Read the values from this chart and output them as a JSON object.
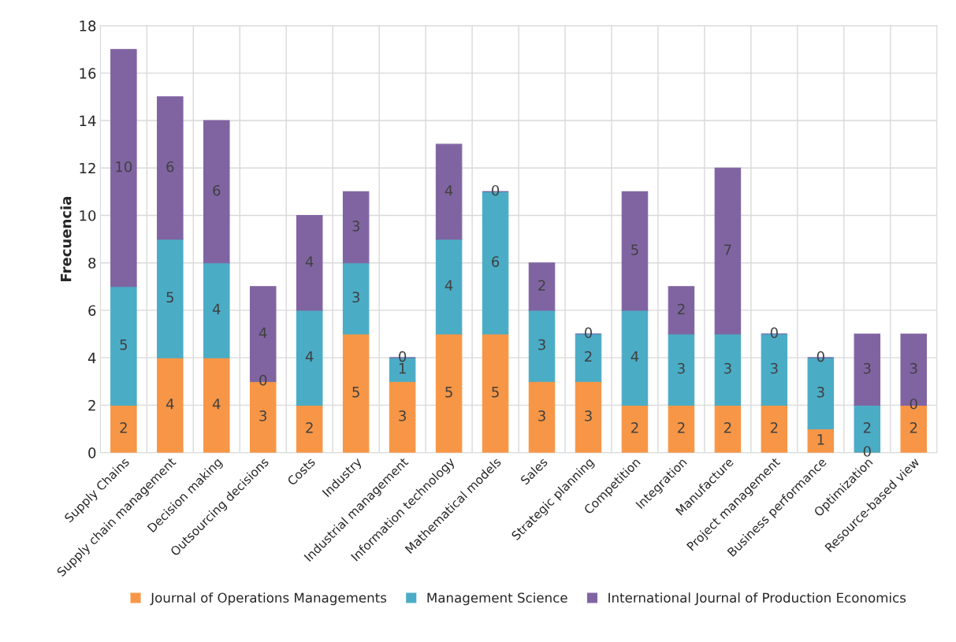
{
  "chart_data": {
    "type": "bar",
    "stacked": true,
    "ylabel": "Frecuencia",
    "categories": [
      "Supply Chains",
      "Supply chain management",
      "Decision making",
      "Outsourcing decisions",
      "Costs",
      "Industry",
      "Industrial management",
      "Information technology",
      "Mathematical models",
      "Sales",
      "Strategic planning",
      "Competition",
      "Integration",
      "Manufacture",
      "Project management",
      "Business performance",
      "Optimization",
      "Resource-based view"
    ],
    "series": [
      {
        "name": "Journal of Operations Managements",
        "color": "#f79646",
        "values": [
          2,
          4,
          4,
          3,
          2,
          5,
          3,
          5,
          5,
          3,
          3,
          2,
          2,
          2,
          2,
          1,
          0,
          2
        ]
      },
      {
        "name": "Management Science",
        "color": "#4bacc6",
        "values": [
          5,
          5,
          4,
          0,
          4,
          3,
          1,
          4,
          6,
          3,
          2,
          4,
          3,
          3,
          3,
          3,
          2,
          0
        ]
      },
      {
        "name": "International Journal of Production Economics",
        "color": "#8064a2",
        "values": [
          10,
          6,
          6,
          4,
          4,
          3,
          0,
          4,
          0,
          2,
          0,
          5,
          2,
          7,
          0,
          0,
          3,
          3
        ]
      }
    ],
    "ylim": [
      0,
      18
    ],
    "yticks": [
      0,
      2,
      4,
      6,
      8,
      10,
      12,
      14,
      16,
      18
    ],
    "grid": true,
    "legend": "bottom",
    "data_labels": true
  }
}
